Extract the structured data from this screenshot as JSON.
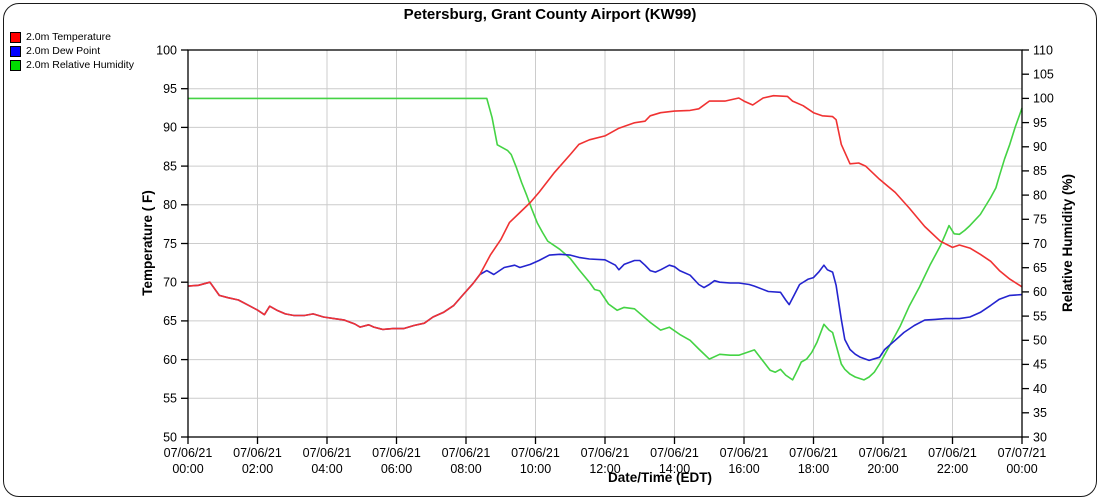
{
  "title": "Petersburg, Grant County Airport (KW99)",
  "legend": {
    "items": [
      {
        "label": "2.0m Temperature",
        "color": "#ff0000"
      },
      {
        "label": "2.0m Dew Point",
        "color": "#0000ff"
      },
      {
        "label": "2.0m Relative Humidity",
        "color": "#00dd00"
      }
    ]
  },
  "colors": {
    "temperature_line": "#f03232",
    "dew_point_line": "#2424cf",
    "humidity_line": "#44d344",
    "gridline": "#cccccc",
    "axis": "#000000",
    "background": "#ffffff"
  },
  "chart_data": {
    "type": "line",
    "title": "Petersburg, Grant County Airport (KW99)",
    "grid": true,
    "x_axis": {
      "label": "Date/Time (EDT)",
      "unit": "hours since 07/06/21 00:00 EDT",
      "range": [
        0,
        24
      ],
      "major_tick_hours": 2,
      "ticks": [
        {
          "date": "07/06/21",
          "time": "00:00"
        },
        {
          "date": "07/06/21",
          "time": "02:00"
        },
        {
          "date": "07/06/21",
          "time": "04:00"
        },
        {
          "date": "07/06/21",
          "time": "06:00"
        },
        {
          "date": "07/06/21",
          "time": "08:00"
        },
        {
          "date": "07/06/21",
          "time": "10:00"
        },
        {
          "date": "07/06/21",
          "time": "12:00"
        },
        {
          "date": "07/06/21",
          "time": "14:00"
        },
        {
          "date": "07/06/21",
          "time": "16:00"
        },
        {
          "date": "07/06/21",
          "time": "18:00"
        },
        {
          "date": "07/06/21",
          "time": "20:00"
        },
        {
          "date": "07/06/21",
          "time": "22:00"
        },
        {
          "date": "07/07/21",
          "time": "00:00"
        }
      ]
    },
    "y_left": {
      "label": "Temperature ( F)",
      "range": [
        50,
        100
      ],
      "tick_step": 5
    },
    "y_right": {
      "label": "Relative Humidity (%)",
      "range": [
        30,
        110
      ],
      "tick_step": 5
    },
    "series": [
      {
        "name": "2.0m Temperature",
        "axis": "left",
        "color": "#f03232",
        "points": [
          [
            0,
            69.5
          ],
          [
            0.3,
            69.6
          ],
          [
            0.63,
            70.0
          ],
          [
            0.9,
            68.3
          ],
          [
            1.15,
            68.0
          ],
          [
            1.45,
            67.7
          ],
          [
            1.7,
            67.1
          ],
          [
            2.0,
            66.4
          ],
          [
            2.2,
            65.8
          ],
          [
            2.35,
            66.9
          ],
          [
            2.55,
            66.4
          ],
          [
            2.8,
            65.9
          ],
          [
            3.05,
            65.7
          ],
          [
            3.35,
            65.7
          ],
          [
            3.6,
            65.9
          ],
          [
            3.9,
            65.5
          ],
          [
            4.2,
            65.3
          ],
          [
            4.5,
            65.1
          ],
          [
            4.8,
            64.6
          ],
          [
            4.95,
            64.2
          ],
          [
            5.2,
            64.5
          ],
          [
            5.35,
            64.2
          ],
          [
            5.6,
            63.9
          ],
          [
            5.9,
            64.0
          ],
          [
            6.2,
            64.0
          ],
          [
            6.5,
            64.4
          ],
          [
            6.8,
            64.7
          ],
          [
            7.05,
            65.5
          ],
          [
            7.35,
            66.1
          ],
          [
            7.65,
            67.0
          ],
          [
            7.9,
            68.3
          ],
          [
            8.2,
            69.8
          ],
          [
            8.4,
            71.0
          ],
          [
            8.7,
            73.5
          ],
          [
            9.0,
            75.5
          ],
          [
            9.25,
            77.7
          ],
          [
            9.55,
            79.0
          ],
          [
            9.85,
            80.3
          ],
          [
            10.1,
            81.6
          ],
          [
            10.55,
            84.2
          ],
          [
            11.0,
            86.5
          ],
          [
            11.25,
            87.8
          ],
          [
            11.55,
            88.4
          ],
          [
            12.0,
            88.9
          ],
          [
            12.4,
            89.9
          ],
          [
            12.85,
            90.6
          ],
          [
            13.15,
            90.8
          ],
          [
            13.3,
            91.5
          ],
          [
            13.6,
            91.9
          ],
          [
            14.0,
            92.1
          ],
          [
            14.45,
            92.2
          ],
          [
            14.7,
            92.4
          ],
          [
            15.0,
            93.4
          ],
          [
            15.45,
            93.4
          ],
          [
            15.85,
            93.8
          ],
          [
            16.0,
            93.4
          ],
          [
            16.25,
            92.9
          ],
          [
            16.55,
            93.8
          ],
          [
            16.85,
            94.1
          ],
          [
            17.25,
            94.0
          ],
          [
            17.4,
            93.4
          ],
          [
            17.7,
            92.8
          ],
          [
            18.0,
            91.9
          ],
          [
            18.25,
            91.5
          ],
          [
            18.55,
            91.4
          ],
          [
            18.65,
            91.0
          ],
          [
            18.8,
            87.8
          ],
          [
            19.05,
            85.3
          ],
          [
            19.3,
            85.4
          ],
          [
            19.5,
            85.0
          ],
          [
            19.9,
            83.3
          ],
          [
            20.35,
            81.6
          ],
          [
            20.75,
            79.6
          ],
          [
            21.2,
            77.2
          ],
          [
            21.65,
            75.3
          ],
          [
            22.0,
            74.5
          ],
          [
            22.2,
            74.8
          ],
          [
            22.5,
            74.4
          ],
          [
            22.8,
            73.6
          ],
          [
            23.1,
            72.7
          ],
          [
            23.35,
            71.5
          ],
          [
            23.65,
            70.4
          ],
          [
            24.0,
            69.4
          ]
        ]
      },
      {
        "name": "2.0m Dew Point",
        "axis": "left",
        "color": "#2424cf",
        "points": [
          [
            0,
            69.5
          ],
          [
            0.3,
            69.6
          ],
          [
            0.63,
            70.0
          ],
          [
            0.9,
            68.3
          ],
          [
            1.15,
            68.0
          ],
          [
            1.45,
            67.7
          ],
          [
            1.7,
            67.1
          ],
          [
            2.0,
            66.4
          ],
          [
            2.2,
            65.8
          ],
          [
            2.35,
            66.9
          ],
          [
            2.55,
            66.4
          ],
          [
            2.8,
            65.9
          ],
          [
            3.05,
            65.7
          ],
          [
            3.35,
            65.7
          ],
          [
            3.6,
            65.9
          ],
          [
            3.9,
            65.5
          ],
          [
            4.2,
            65.3
          ],
          [
            4.5,
            65.1
          ],
          [
            4.8,
            64.6
          ],
          [
            4.95,
            64.2
          ],
          [
            5.2,
            64.5
          ],
          [
            5.35,
            64.2
          ],
          [
            5.6,
            63.9
          ],
          [
            5.9,
            64.0
          ],
          [
            6.2,
            64.0
          ],
          [
            6.5,
            64.4
          ],
          [
            6.8,
            64.7
          ],
          [
            7.05,
            65.5
          ],
          [
            7.35,
            66.1
          ],
          [
            7.65,
            67.0
          ],
          [
            7.9,
            68.3
          ],
          [
            8.2,
            69.8
          ],
          [
            8.4,
            71.0
          ],
          [
            8.6,
            71.5
          ],
          [
            8.8,
            71.0
          ],
          [
            9.1,
            71.9
          ],
          [
            9.4,
            72.2
          ],
          [
            9.55,
            71.9
          ],
          [
            9.85,
            72.3
          ],
          [
            10.1,
            72.8
          ],
          [
            10.4,
            73.5
          ],
          [
            10.7,
            73.6
          ],
          [
            11.0,
            73.5
          ],
          [
            11.25,
            73.2
          ],
          [
            11.55,
            73.0
          ],
          [
            12.0,
            72.9
          ],
          [
            12.3,
            72.2
          ],
          [
            12.4,
            71.6
          ],
          [
            12.55,
            72.3
          ],
          [
            12.85,
            72.8
          ],
          [
            13.0,
            72.8
          ],
          [
            13.15,
            72.2
          ],
          [
            13.3,
            71.5
          ],
          [
            13.45,
            71.3
          ],
          [
            13.6,
            71.6
          ],
          [
            13.85,
            72.2
          ],
          [
            14.0,
            72.0
          ],
          [
            14.15,
            71.5
          ],
          [
            14.45,
            70.9
          ],
          [
            14.7,
            69.7
          ],
          [
            14.85,
            69.3
          ],
          [
            15.0,
            69.7
          ],
          [
            15.15,
            70.2
          ],
          [
            15.3,
            70.0
          ],
          [
            15.6,
            69.9
          ],
          [
            15.85,
            69.9
          ],
          [
            16.15,
            69.7
          ],
          [
            16.3,
            69.5
          ],
          [
            16.7,
            68.8
          ],
          [
            17.05,
            68.7
          ],
          [
            17.2,
            67.7
          ],
          [
            17.3,
            67.1
          ],
          [
            17.45,
            68.4
          ],
          [
            17.6,
            69.7
          ],
          [
            17.85,
            70.4
          ],
          [
            18.0,
            70.6
          ],
          [
            18.15,
            71.3
          ],
          [
            18.3,
            72.2
          ],
          [
            18.4,
            71.6
          ],
          [
            18.55,
            71.3
          ],
          [
            18.65,
            69.6
          ],
          [
            18.8,
            65.2
          ],
          [
            18.9,
            62.6
          ],
          [
            19.05,
            61.3
          ],
          [
            19.2,
            60.7
          ],
          [
            19.35,
            60.3
          ],
          [
            19.6,
            59.9
          ],
          [
            19.75,
            60.1
          ],
          [
            19.9,
            60.3
          ],
          [
            20.05,
            61.3
          ],
          [
            20.35,
            62.5
          ],
          [
            20.6,
            63.5
          ],
          [
            20.9,
            64.4
          ],
          [
            21.2,
            65.1
          ],
          [
            21.5,
            65.2
          ],
          [
            21.8,
            65.3
          ],
          [
            22.2,
            65.3
          ],
          [
            22.5,
            65.5
          ],
          [
            22.8,
            66.1
          ],
          [
            23.1,
            67.0
          ],
          [
            23.35,
            67.8
          ],
          [
            23.65,
            68.3
          ],
          [
            24.0,
            68.4
          ]
        ]
      },
      {
        "name": "2.0m Relative Humidity",
        "axis": "right",
        "color": "#44d344",
        "points": [
          [
            0,
            100
          ],
          [
            8.6,
            100
          ],
          [
            8.75,
            96.0
          ],
          [
            8.9,
            90.4
          ],
          [
            9.05,
            89.8
          ],
          [
            9.2,
            89.2
          ],
          [
            9.3,
            88.4
          ],
          [
            9.45,
            85.7
          ],
          [
            9.6,
            82.6
          ],
          [
            9.75,
            79.9
          ],
          [
            9.9,
            77.0
          ],
          [
            10.05,
            74.3
          ],
          [
            10.2,
            72.3
          ],
          [
            10.35,
            70.5
          ],
          [
            10.7,
            68.8
          ],
          [
            11.0,
            66.9
          ],
          [
            11.25,
            64.6
          ],
          [
            11.55,
            62.0
          ],
          [
            11.7,
            60.5
          ],
          [
            11.85,
            60.2
          ],
          [
            12.1,
            57.5
          ],
          [
            12.35,
            56.2
          ],
          [
            12.55,
            56.8
          ],
          [
            12.85,
            56.5
          ],
          [
            13.3,
            53.7
          ],
          [
            13.6,
            52.1
          ],
          [
            13.85,
            52.7
          ],
          [
            14.15,
            51.2
          ],
          [
            14.45,
            50.0
          ],
          [
            14.7,
            48.2
          ],
          [
            15.0,
            46.1
          ],
          [
            15.3,
            47.1
          ],
          [
            15.6,
            46.9
          ],
          [
            15.85,
            46.9
          ],
          [
            16.3,
            48.0
          ],
          [
            16.75,
            43.8
          ],
          [
            16.9,
            43.4
          ],
          [
            17.05,
            44.0
          ],
          [
            17.2,
            42.8
          ],
          [
            17.4,
            41.8
          ],
          [
            17.55,
            44.0
          ],
          [
            17.65,
            45.5
          ],
          [
            17.8,
            46.1
          ],
          [
            17.95,
            47.5
          ],
          [
            18.1,
            49.6
          ],
          [
            18.3,
            53.3
          ],
          [
            18.45,
            52.1
          ],
          [
            18.55,
            51.6
          ],
          [
            18.65,
            49.0
          ],
          [
            18.8,
            45.1
          ],
          [
            18.9,
            44.0
          ],
          [
            19.05,
            43.0
          ],
          [
            19.2,
            42.4
          ],
          [
            19.45,
            41.8
          ],
          [
            19.6,
            42.4
          ],
          [
            19.75,
            43.4
          ],
          [
            19.9,
            45.1
          ],
          [
            20.2,
            49.0
          ],
          [
            20.5,
            53.0
          ],
          [
            20.75,
            57.0
          ],
          [
            21.05,
            61.0
          ],
          [
            21.35,
            65.5
          ],
          [
            21.65,
            69.5
          ],
          [
            21.8,
            72.0
          ],
          [
            21.9,
            73.7
          ],
          [
            22.05,
            72.0
          ],
          [
            22.2,
            71.9
          ],
          [
            22.35,
            72.7
          ],
          [
            22.5,
            73.7
          ],
          [
            22.8,
            76.0
          ],
          [
            23.1,
            79.5
          ],
          [
            23.25,
            81.5
          ],
          [
            23.35,
            84.0
          ],
          [
            23.5,
            87.5
          ],
          [
            23.65,
            90.5
          ],
          [
            23.8,
            94.0
          ],
          [
            23.95,
            97.0
          ],
          [
            24.0,
            98.0
          ]
        ]
      }
    ]
  }
}
